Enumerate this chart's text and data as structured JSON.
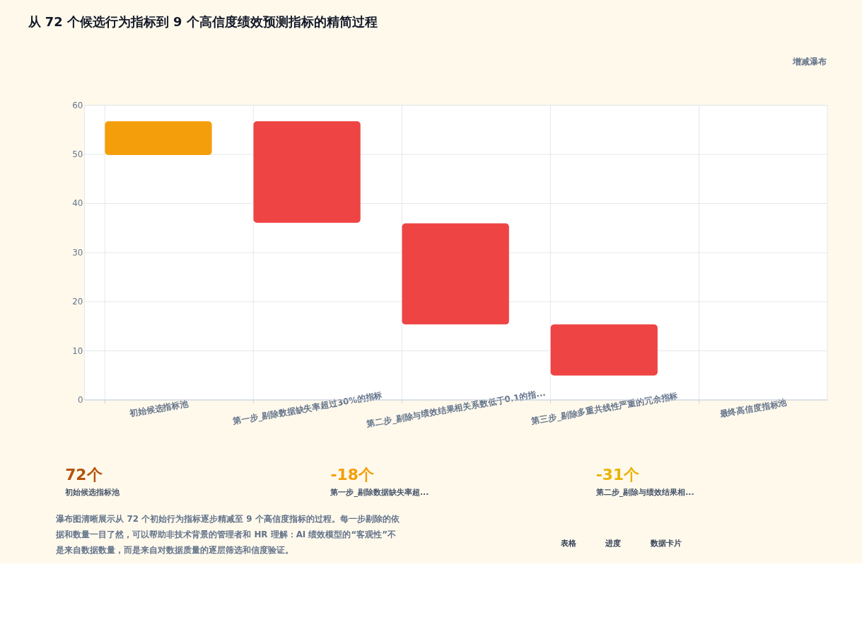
{
  "chart_data": {
    "type": "bar",
    "title": "从 72 个候选行为指标到 9 个高信度绩效预测指标的精简过程",
    "subtitle": "增减瀑布",
    "categories": [
      "初始候选指标池",
      "第一步_剔除数据缺失率超过30%的指标",
      "第二步_剔除与绩效结果相关系数低于0.1的指...",
      "第三步_剔除多重共线性严重的冗余指标",
      "最终高信度指标池"
    ],
    "base": [
      49.8,
      56.7,
      35.9,
      15.3,
      null
    ],
    "values": [
      6.9,
      -20.7,
      -20.6,
      -10.4,
      null
    ],
    "colors": [
      "#f59e0b",
      "#ef4444",
      "#ef4444",
      "#ef4444",
      "#ef4444"
    ],
    "ylim": [
      0,
      60
    ],
    "yticks": [
      0,
      10,
      20,
      30,
      40,
      50,
      60
    ],
    "grid": true,
    "legend": false,
    "annotations": [
      "72个",
      "初始候选指标池",
      "-18个",
      "第一步_剔除数据缺失率超...",
      "-31个",
      "第二步_剔除与绩效结果相...",
      "瀑布图清晰展示从 72 个初始行为指标逐步精减至 9 个高信度指标的过程。每一步剔除的依据和数量一目了然，可以帮助非技术背景的管理者和 HR 理解：AI 绩效模型的“客观性”不是来自数据数量，而是来自对数据质量的逐层筛选和信度验证。",
      "表格",
      "进度",
      "数据卡片"
    ]
  }
}
